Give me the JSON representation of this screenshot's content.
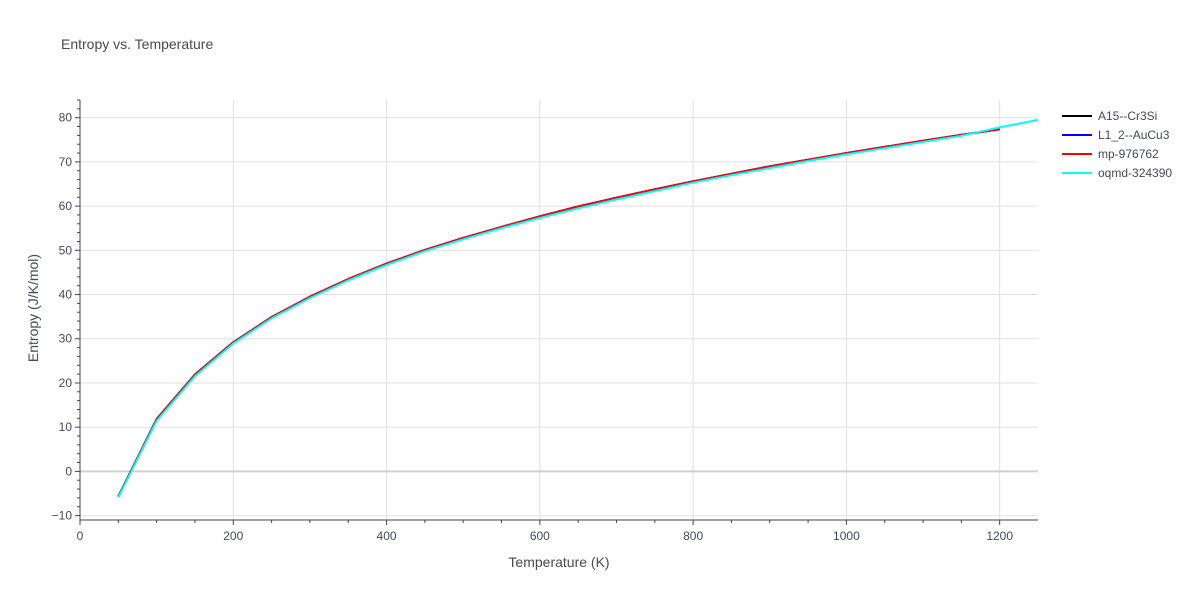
{
  "chart_data": {
    "type": "line",
    "title": "Entropy vs. Temperature",
    "xlabel": "Temperature (K)",
    "ylabel": "Entropy (J/K/mol)",
    "xlim": [
      0,
      1250
    ],
    "ylim": [
      -11,
      84
    ],
    "xticks": [
      "0",
      "200",
      "400",
      "600",
      "800",
      "1000",
      "1200"
    ],
    "yticks": [
      "−10",
      "0",
      "10",
      "20",
      "30",
      "40",
      "50",
      "60",
      "70",
      "80"
    ],
    "xtick_values": [
      0,
      200,
      400,
      600,
      800,
      1000,
      1200
    ],
    "ytick_values": [
      -10,
      0,
      10,
      20,
      30,
      40,
      50,
      60,
      70,
      80
    ],
    "grid": true,
    "legend_position": "top-right",
    "series": [
      {
        "name": "A15--Cr3Si",
        "color": "#000000",
        "x": [
          50,
          100,
          150,
          200,
          250,
          300,
          350,
          400,
          450,
          500,
          550,
          600,
          650,
          700,
          750,
          800,
          850,
          900,
          950,
          1000,
          1050,
          1100,
          1150,
          1200
        ],
        "y": [
          -5.7,
          11.8,
          21.9,
          29.2,
          34.9,
          39.5,
          43.5,
          47.0,
          50.1,
          52.8,
          55.3,
          57.7,
          59.9,
          61.9,
          63.8,
          65.6,
          67.3,
          69.0,
          70.5,
          72.0,
          73.4,
          74.8,
          76.1,
          77.4
        ]
      },
      {
        "name": "L1_2--AuCu3",
        "color": "#0000ff",
        "x": [
          50,
          100,
          150,
          200,
          250,
          300,
          350,
          400,
          450,
          500,
          550,
          600,
          650,
          700,
          750,
          800,
          850,
          900,
          950,
          1000,
          1050,
          1100,
          1150,
          1200
        ],
        "y": [
          -5.7,
          11.8,
          21.9,
          29.2,
          34.9,
          39.5,
          43.5,
          47.0,
          50.1,
          52.8,
          55.3,
          57.7,
          59.9,
          61.9,
          63.8,
          65.6,
          67.3,
          69.0,
          70.5,
          72.0,
          73.4,
          74.8,
          76.1,
          77.4
        ]
      },
      {
        "name": "mp-976762",
        "color": "#ff0000",
        "x": [
          50,
          100,
          150,
          200,
          250,
          300,
          350,
          400,
          450,
          500,
          550,
          600,
          650,
          700,
          750,
          800,
          850,
          900,
          950,
          1000,
          1050,
          1100,
          1150,
          1200
        ],
        "y": [
          -5.7,
          11.8,
          21.9,
          29.2,
          34.9,
          39.5,
          43.5,
          47.0,
          50.1,
          52.8,
          55.3,
          57.7,
          59.9,
          61.9,
          63.8,
          65.6,
          67.3,
          69.0,
          70.5,
          72.0,
          73.4,
          74.8,
          76.1,
          77.4
        ]
      },
      {
        "name": "oqmd-324390",
        "color": "#00ffff",
        "x": [
          50,
          100,
          150,
          200,
          250,
          300,
          350,
          400,
          450,
          500,
          550,
          600,
          650,
          700,
          750,
          800,
          850,
          900,
          950,
          1000,
          1050,
          1100,
          1150,
          1200,
          1250
        ],
        "y": [
          -5.9,
          11.4,
          21.5,
          28.9,
          34.6,
          39.2,
          43.2,
          46.7,
          49.8,
          52.5,
          55.0,
          57.3,
          59.5,
          61.5,
          63.4,
          65.3,
          67.0,
          68.6,
          70.2,
          71.7,
          73.1,
          74.5,
          75.9,
          77.8,
          79.5
        ]
      }
    ]
  }
}
